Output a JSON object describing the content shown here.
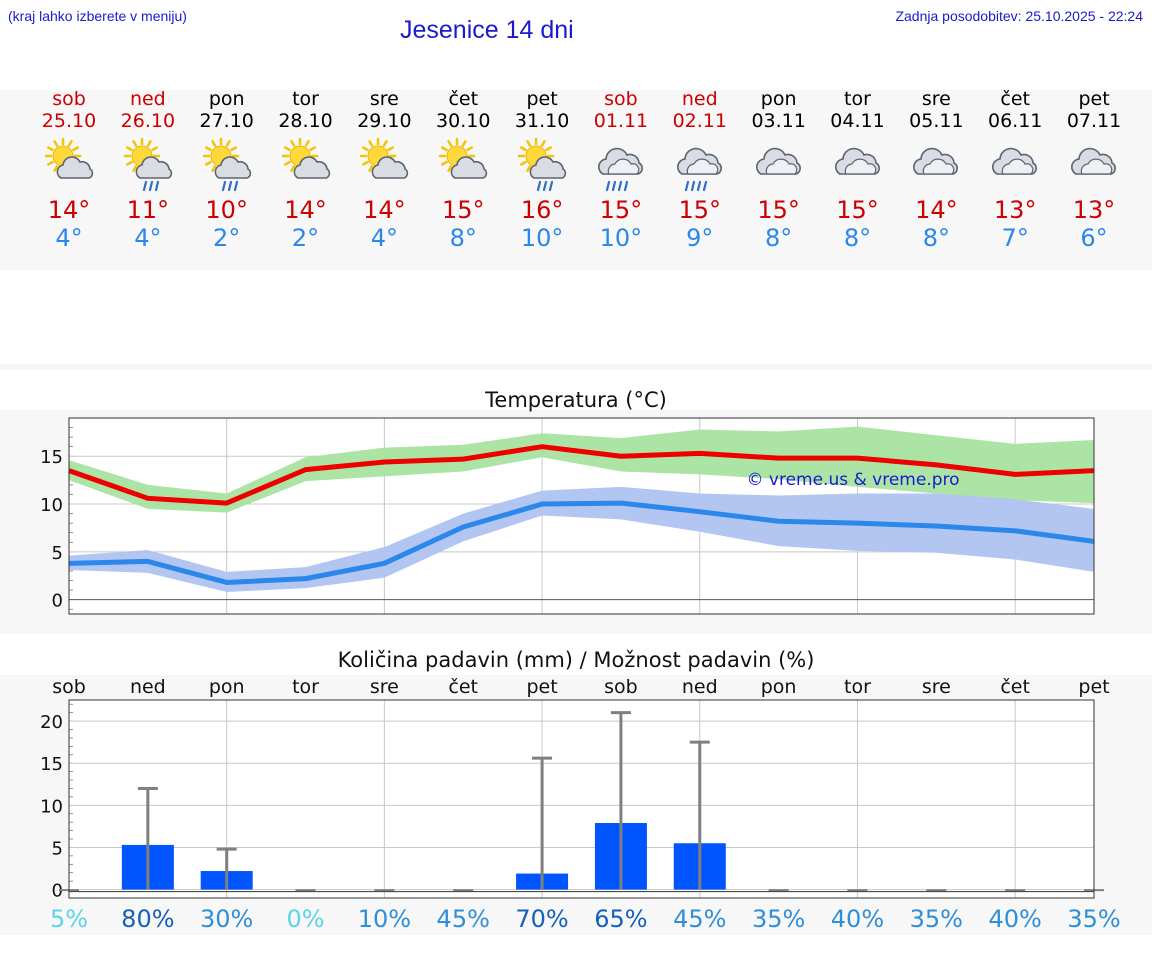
{
  "header": {
    "hint": "(kraj lahko izberete v meniju)",
    "title": "Jesenice 14 dni",
    "updated": "Zadnja posodobitev: 25.10.2025 - 22:24"
  },
  "colors": {
    "title": "#1a1acd",
    "weekend": "#cc0000",
    "max_line": "#ee0000",
    "max_band": "#a8e3a0",
    "min_line": "#2b87ea",
    "min_band": "#aec3f0",
    "bar": "#0055ff",
    "whisker": "#808080"
  },
  "days": [
    {
      "name": "sob",
      "date": "25.10",
      "weekend": true,
      "icon": "sun-cloud-icon",
      "tmax": "14°",
      "tmin": "4°"
    },
    {
      "name": "ned",
      "date": "26.10",
      "weekend": true,
      "icon": "sun-cloud-rain-icon",
      "tmax": "11°",
      "tmin": "4°"
    },
    {
      "name": "pon",
      "date": "27.10",
      "weekend": false,
      "icon": "sun-cloud-rain-icon",
      "tmax": "10°",
      "tmin": "2°"
    },
    {
      "name": "tor",
      "date": "28.10",
      "weekend": false,
      "icon": "sun-cloud-icon",
      "tmax": "14°",
      "tmin": "2°"
    },
    {
      "name": "sre",
      "date": "29.10",
      "weekend": false,
      "icon": "sun-cloud-icon",
      "tmax": "14°",
      "tmin": "4°"
    },
    {
      "name": "čet",
      "date": "30.10",
      "weekend": false,
      "icon": "sun-cloud-icon",
      "tmax": "15°",
      "tmin": "8°"
    },
    {
      "name": "pet",
      "date": "31.10",
      "weekend": false,
      "icon": "sun-cloud-rain-icon",
      "tmax": "16°",
      "tmin": "10°"
    },
    {
      "name": "sob",
      "date": "01.11",
      "weekend": true,
      "icon": "cloud-rain-icon",
      "tmax": "15°",
      "tmin": "10°"
    },
    {
      "name": "ned",
      "date": "02.11",
      "weekend": true,
      "icon": "cloud-rain-icon",
      "tmax": "15°",
      "tmin": "9°"
    },
    {
      "name": "pon",
      "date": "03.11",
      "weekend": false,
      "icon": "cloud-icon",
      "tmax": "15°",
      "tmin": "8°"
    },
    {
      "name": "tor",
      "date": "04.11",
      "weekend": false,
      "icon": "cloud-icon",
      "tmax": "15°",
      "tmin": "8°"
    },
    {
      "name": "sre",
      "date": "05.11",
      "weekend": false,
      "icon": "cloud-icon",
      "tmax": "14°",
      "tmin": "8°"
    },
    {
      "name": "čet",
      "date": "06.11",
      "weekend": false,
      "icon": "cloud-icon",
      "tmax": "13°",
      "tmin": "7°"
    },
    {
      "name": "pet",
      "date": "07.11",
      "weekend": false,
      "icon": "cloud-icon",
      "tmax": "13°",
      "tmin": "6°"
    }
  ],
  "chart_data": [
    {
      "type": "line",
      "title": "Temperatura (°C)",
      "watermark": "© vreme.us & vreme.pro",
      "ylim": [
        -1.5,
        19
      ],
      "yticks": [
        0,
        5,
        10,
        15
      ],
      "grid": true,
      "x": [
        0,
        1,
        2,
        3,
        4,
        5,
        6,
        7,
        8,
        9,
        10,
        11,
        12,
        13
      ],
      "series": [
        {
          "name": "max",
          "values": [
            13.5,
            10.6,
            10.1,
            13.6,
            14.4,
            14.7,
            16.0,
            15.0,
            15.3,
            14.8,
            14.8,
            14.1,
            13.1,
            13.5
          ],
          "band_low": [
            12.5,
            9.5,
            9.1,
            12.4,
            12.9,
            13.4,
            14.9,
            13.4,
            13.1,
            12.6,
            11.8,
            11.1,
            10.4,
            10.1
          ],
          "band_high": [
            14.6,
            12.0,
            11.1,
            14.9,
            15.9,
            16.2,
            17.4,
            16.9,
            17.8,
            17.6,
            18.1,
            17.2,
            16.3,
            16.7
          ]
        },
        {
          "name": "min",
          "values": [
            3.8,
            4.0,
            1.8,
            2.2,
            3.8,
            7.6,
            10.0,
            10.1,
            9.2,
            8.2,
            8.0,
            7.7,
            7.2,
            6.1
          ],
          "band_low": [
            3.1,
            2.8,
            0.8,
            1.2,
            2.3,
            6.1,
            8.8,
            8.4,
            7.1,
            5.6,
            5.1,
            4.9,
            4.2,
            2.9
          ],
          "band_high": [
            4.6,
            5.2,
            2.9,
            3.4,
            5.5,
            9.0,
            11.4,
            11.8,
            11.1,
            10.9,
            11.1,
            11.1,
            10.5,
            9.5
          ]
        }
      ]
    },
    {
      "type": "bar",
      "title": "Količina padavin (mm) / Možnost padavin (%)",
      "ylim": [
        -1,
        22.5
      ],
      "yticks": [
        0,
        5,
        10,
        15,
        20
      ],
      "grid": true,
      "categories": [
        "sob",
        "ned",
        "pon",
        "tor",
        "sre",
        "čet",
        "pet",
        "sob",
        "ned",
        "pon",
        "tor",
        "sre",
        "čet",
        "pet"
      ],
      "values": [
        0,
        5.3,
        2.2,
        0,
        0,
        0,
        1.9,
        7.9,
        5.5,
        0,
        0,
        0,
        0,
        0
      ],
      "error_high": [
        0,
        12.0,
        4.8,
        0,
        0,
        0,
        15.6,
        21.0,
        17.5,
        0,
        0,
        0,
        0,
        0
      ],
      "probability": [
        "5%",
        "80%",
        "30%",
        "0%",
        "10%",
        "45%",
        "70%",
        "65%",
        "45%",
        "35%",
        "40%",
        "35%",
        "40%",
        "35%"
      ],
      "probability_colors": [
        "#5fd3e8",
        "#1560bd",
        "#2f8fd6",
        "#5fd3e8",
        "#2f8fd6",
        "#2f8fd6",
        "#1560bd",
        "#1560bd",
        "#2f8fd6",
        "#2f8fd6",
        "#2f8fd6",
        "#2f8fd6",
        "#2f8fd6",
        "#2f8fd6"
      ]
    }
  ]
}
